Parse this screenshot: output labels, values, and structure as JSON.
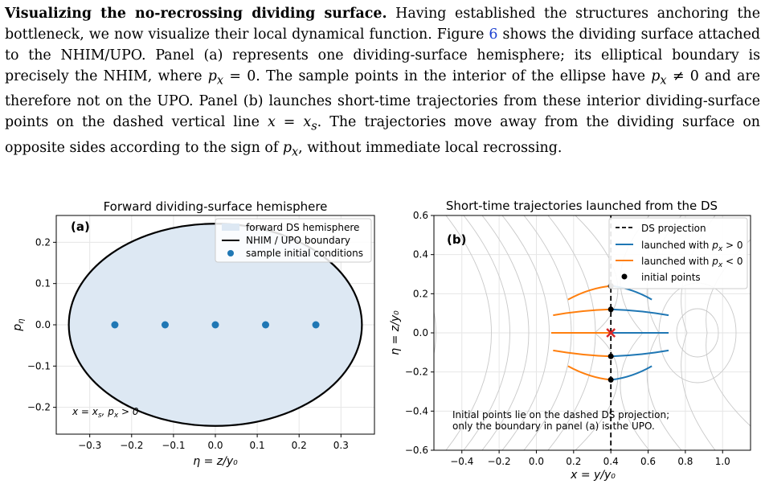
{
  "paragraph": {
    "heading": "Visualizing the no-recrossing dividing surface.",
    "s1": "Having established the structures anchoring the bottleneck, we now visualize their local dynamical function. Figure ",
    "figref": "6",
    "s2": " shows the dividing surface attached to the NHIM/UPO. Panel (a) represents one dividing-surface hemisphere; its elliptical boundary is precisely the NHIM, where ",
    "m1": "p",
    "m1sub": "x",
    "m1rest": " = 0",
    "s3": ". The sample points in the interior of the ellipse have ",
    "m2": "p",
    "m2sub": "x",
    "m2rest": " ≠ 0",
    "s4": " and are therefore not on the UPO. Panel (b) launches short-time trajectories from these interior dividing-surface points on the dashed vertical line ",
    "m3": "x = x",
    "m3sub": "s",
    "s5": ". The trajectories move away from the dividing surface on opposite sides according to the sign of ",
    "m4": "p",
    "m4sub": "x",
    "s6": ", without immediate local recrossing."
  },
  "panel_a": {
    "title": "Forward dividing-surface hemisphere",
    "tag": "(a)",
    "xlabel": "η = z/y₀",
    "ylabel": "pη",
    "annotation": "x = xs,  px > 0",
    "xticks": [
      "−0.3",
      "−0.2",
      "−0.1",
      "0.0",
      "0.1",
      "0.2",
      "0.3"
    ],
    "yticks": [
      "0.2",
      "0.1",
      "0.0",
      "−0.1",
      "−0.2"
    ],
    "legend": [
      "forward DS hemisphere",
      "NHIM / UPO boundary",
      "sample initial conditions"
    ]
  },
  "panel_b": {
    "title": "Short-time trajectories launched from the DS",
    "tag": "(b)",
    "xlabel": "x = y/y₀",
    "ylabel": "η = z/y₀",
    "xticks": [
      "−0.4",
      "−0.2",
      "0.0",
      "0.2",
      "0.4",
      "0.6",
      "0.8",
      "1.0"
    ],
    "yticks": [
      "0.6",
      "0.4",
      "0.2",
      "0.0",
      "−0.2",
      "−0.4",
      "−0.6"
    ],
    "legend": [
      "DS projection",
      "launched with px > 0",
      "launched with px < 0",
      "initial points"
    ],
    "note_line1": "Initial points lie on the dashed DS projection;",
    "note_line2": "only the boundary in panel (a) is the UPO."
  },
  "colors": {
    "blue": "#1f77b4",
    "orange": "#ff7f0e",
    "fill": "#dde8f3",
    "red": "#d62728",
    "grid": "#e6e6e6",
    "contour": "#c9c9c9"
  },
  "chart_data": [
    {
      "type": "scatter",
      "title": "Forward dividing-surface hemisphere",
      "xlabel": "η = z/y₀",
      "ylabel": "pη",
      "xlim": [
        -0.38,
        0.38
      ],
      "ylim": [
        -0.265,
        0.265
      ],
      "ellipse": {
        "center": [
          0,
          0
        ],
        "semi_axis_x": 0.35,
        "semi_axis_y": 0.245
      },
      "series": [
        {
          "name": "sample initial conditions",
          "x": [
            -0.24,
            -0.12,
            0.0,
            0.12,
            0.24
          ],
          "y": [
            0,
            0,
            0,
            0,
            0
          ]
        }
      ],
      "grid": true,
      "legend": "top-right"
    },
    {
      "type": "line",
      "title": "Short-time trajectories launched from the DS",
      "xlabel": "x = y/y₀",
      "ylabel": "η = z/y₀",
      "xlim": [
        -0.55,
        1.15
      ],
      "ylim": [
        -0.6,
        0.6
      ],
      "ds_x": 0.4,
      "initial_points": {
        "x": [
          0.4,
          0.4,
          0.4,
          0.4,
          0.4
        ],
        "y": [
          0.24,
          0.12,
          0.0,
          -0.12,
          -0.24
        ]
      },
      "series": [
        {
          "name": "launched with px > 0",
          "x_end": [
            0.62,
            0.71,
            0.71,
            0.71,
            0.62
          ],
          "y_end": [
            0.17,
            0.09,
            0.0,
            -0.09,
            -0.17
          ]
        },
        {
          "name": "launched with px < 0",
          "x_end": [
            0.17,
            0.09,
            0.08,
            0.09,
            0.17
          ],
          "y_end": [
            0.17,
            0.09,
            0.0,
            -0.09,
            -0.17
          ]
        }
      ],
      "grid": true,
      "legend": "top-right"
    }
  ]
}
